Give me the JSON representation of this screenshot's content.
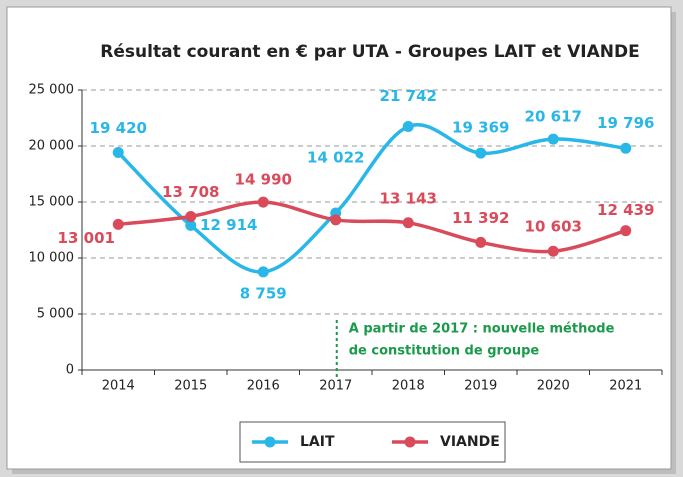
{
  "chart_data": {
    "type": "line",
    "title": "Résultat  courant en € par  UTA - Groupes LAIT et VIANDE",
    "categories": [
      "2014",
      "2015",
      "2016",
      "2017",
      "2018",
      "2019",
      "2020",
      "2021"
    ],
    "series": [
      {
        "name": "LAIT",
        "color": "#29b6e8",
        "values": [
          19420,
          12914,
          8759,
          14022,
          21742,
          19369,
          20617,
          19796
        ],
        "value_labels": [
          "19 420",
          "12 914",
          "8 759",
          "14 022",
          "21 742",
          "19 369",
          "20 617",
          "19 796"
        ]
      },
      {
        "name": "VIANDE",
        "color": "#d94b5a",
        "values": [
          13001,
          13708,
          14990,
          13400,
          13143,
          11392,
          10603,
          12439
        ],
        "value_labels": [
          "13 001",
          "13 708",
          "14 990",
          null,
          "13 143",
          "11 392",
          "10 603",
          "12 439"
        ]
      }
    ],
    "ylim": [
      0,
      25000
    ],
    "yticks": [
      0,
      {
        "value": 5000,
        "label": "5 000"
      },
      {
        "value": 10000,
        "label": "10 000"
      },
      {
        "value": 15000,
        "label": "15 000"
      },
      {
        "value": 20000,
        "label": "20 000"
      },
      {
        "value": 25000,
        "label": "25 000"
      }
    ],
    "grid": true,
    "annotation": [
      "A partir de 2017 : nouvelle méthode",
      "de constitution de groupe"
    ],
    "annotation_color": "#1a9a4a",
    "legend": "bottom"
  }
}
